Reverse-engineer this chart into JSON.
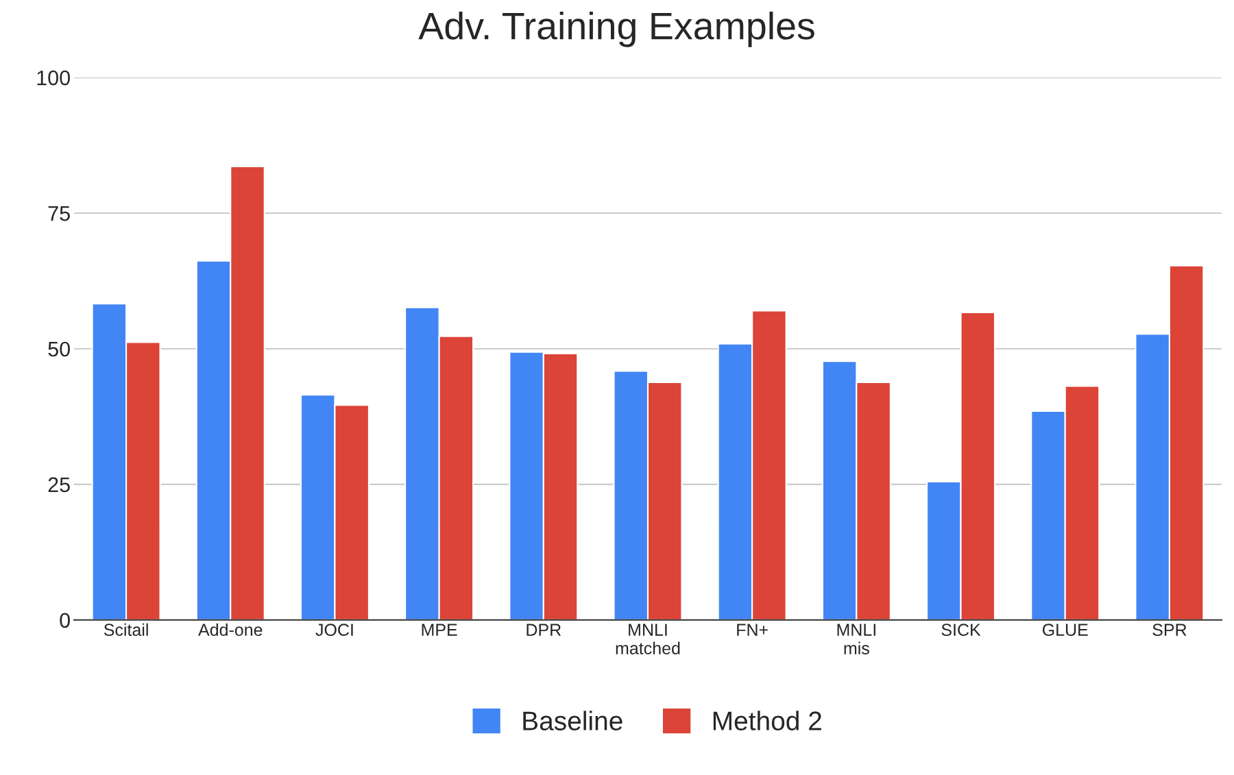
{
  "chart_data": {
    "type": "bar",
    "title": "Adv. Training Examples",
    "categories": [
      "Scitail",
      "Add-one",
      "JOCI",
      "MPE",
      "DPR",
      "MNLI\nmatched",
      "FN+",
      "MNLI\nmis",
      "SICK",
      "GLUE",
      "SPR"
    ],
    "series": [
      {
        "name": "Baseline",
        "color": "#4285f4",
        "values": [
          58.3,
          66.2,
          41.5,
          57.6,
          49.4,
          45.9,
          50.9,
          47.7,
          25.5,
          38.5,
          52.7
        ]
      },
      {
        "name": "Method 2",
        "color": "#db4437",
        "values": [
          51.2,
          83.6,
          39.6,
          52.3,
          49.1,
          43.8,
          57.0,
          43.8,
          56.7,
          43.1,
          65.3
        ]
      }
    ],
    "ylim": [
      0,
      100
    ],
    "yticks": [
      0,
      25,
      50,
      75,
      100
    ],
    "grid": "y",
    "legend": "bottom"
  }
}
